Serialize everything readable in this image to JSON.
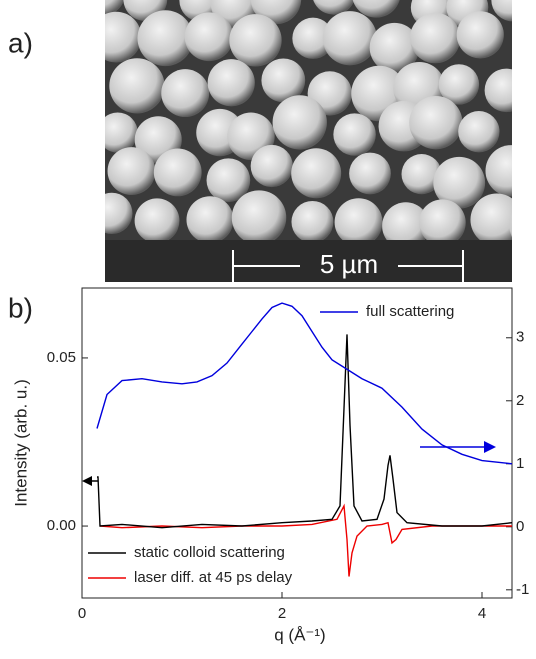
{
  "panel_a": {
    "label": "a)",
    "scale_bar": "5 µm"
  },
  "chart_data": {
    "type": "line",
    "panel_label": "b)",
    "xlabel": "q (Å⁻¹)",
    "ylabel": "Intensity (arb. u.)",
    "xlim": [
      0,
      4.3
    ],
    "xticks": [
      0,
      2,
      4
    ],
    "ylim": [
      -0.0214,
      0.0708
    ],
    "yticks": [
      {
        "value": 0,
        "label": "0.00"
      },
      {
        "value": 0.05,
        "label": "0.05"
      }
    ],
    "y2lim": [
      -1.13,
      3.79
    ],
    "y2ticks": [
      -1,
      0,
      1,
      2,
      3
    ],
    "series": [
      {
        "name": "full scattering",
        "color": "#0000dd",
        "axis": "y2",
        "x": [
          0.15,
          0.25,
          0.4,
          0.6,
          0.8,
          1.0,
          1.15,
          1.3,
          1.45,
          1.6,
          1.7,
          1.8,
          1.9,
          2.0,
          2.1,
          2.2,
          2.3,
          2.4,
          2.5,
          2.6,
          2.8,
          3.0,
          3.2,
          3.4,
          3.6,
          3.8,
          4.0,
          4.3
        ],
        "values": [
          1.56,
          2.1,
          2.32,
          2.35,
          2.3,
          2.27,
          2.3,
          2.4,
          2.6,
          2.9,
          3.1,
          3.3,
          3.48,
          3.55,
          3.5,
          3.35,
          3.1,
          2.85,
          2.65,
          2.55,
          2.35,
          2.2,
          1.9,
          1.55,
          1.3,
          1.15,
          1.05,
          1.0
        ]
      },
      {
        "name": "static colloid scattering",
        "color": "#000000",
        "x": [
          0.15,
          0.16,
          0.18,
          0.4,
          0.8,
          1.2,
          1.6,
          2.0,
          2.3,
          2.5,
          2.58,
          2.62,
          2.65,
          2.68,
          2.72,
          2.8,
          2.95,
          3.02,
          3.06,
          3.08,
          3.11,
          3.15,
          3.25,
          3.6,
          4.0,
          4.3
        ],
        "values": [
          0.0146,
          0.0146,
          0.0,
          0.0005,
          -0.0005,
          0.0005,
          0.0,
          0.001,
          0.0015,
          0.002,
          0.006,
          0.035,
          0.057,
          0.03,
          0.006,
          0.0015,
          0.002,
          0.008,
          0.018,
          0.021,
          0.014,
          0.004,
          0.001,
          0.0,
          0.0,
          0.001
        ]
      },
      {
        "name": "laser diff. at 45 ps delay",
        "color": "#ee0000",
        "x": [
          0.18,
          0.4,
          0.8,
          1.2,
          1.6,
          2.0,
          2.3,
          2.55,
          2.62,
          2.65,
          2.67,
          2.7,
          2.75,
          2.85,
          3.0,
          3.06,
          3.1,
          3.14,
          3.2,
          3.5,
          4.0,
          4.3
        ],
        "values": [
          0.0,
          -0.0005,
          0.0,
          -0.0005,
          0.0,
          0.0,
          0.0005,
          0.002,
          0.006,
          -0.004,
          -0.015,
          -0.008,
          -0.003,
          0.0,
          0.0005,
          0.001,
          -0.005,
          -0.004,
          -0.001,
          0.0,
          0.0,
          0.0
        ]
      }
    ]
  }
}
